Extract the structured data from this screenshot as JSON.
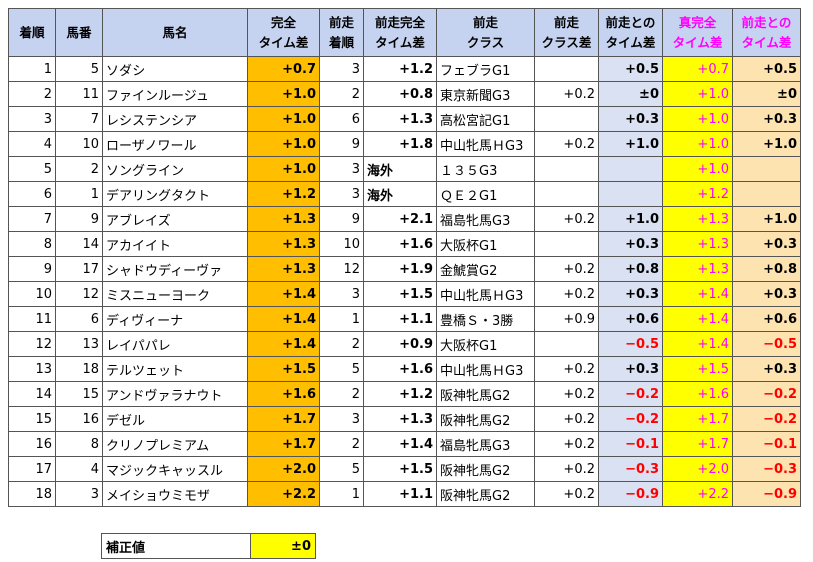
{
  "headers": [
    "着順",
    "馬番",
    "馬名",
    "完全\nタイム差",
    "前走\n着順",
    "前走完全\nタイム差",
    "前走\nクラス",
    "前走\nクラス差",
    "前走との\nタイム差",
    "真完全\nタイム差",
    "前走との\nタイム差"
  ],
  "rows": [
    [
      "1",
      "5",
      "ソダシ",
      "+0.7",
      "3",
      "+1.2",
      "フェブラG1",
      "",
      "+0.5",
      "+0.7",
      "+0.5"
    ],
    [
      "2",
      "11",
      "ファインルージュ",
      "+1.0",
      "2",
      "+0.8",
      "東京新聞G3",
      "+0.2",
      "±0",
      "+1.0",
      "±0"
    ],
    [
      "3",
      "7",
      "レシステンシア",
      "+1.0",
      "6",
      "+1.3",
      "高松宮記G1",
      "",
      "+0.3",
      "+1.0",
      "+0.3"
    ],
    [
      "4",
      "10",
      "ローザノワール",
      "+1.0",
      "9",
      "+1.8",
      "中山牝馬ＨG3",
      "+0.2",
      "+1.0",
      "+1.0",
      "+1.0"
    ],
    [
      "5",
      "2",
      "ソングライン",
      "+1.0",
      "3",
      "海外",
      "１３５G3",
      "",
      "",
      "+1.0",
      ""
    ],
    [
      "6",
      "1",
      "デアリングタクト",
      "+1.2",
      "3",
      "海外",
      "ＱＥ２G1",
      "",
      "",
      "+1.2",
      ""
    ],
    [
      "7",
      "9",
      "アブレイズ",
      "+1.3",
      "9",
      "+2.1",
      "福島牝馬G3",
      "+0.2",
      "+1.0",
      "+1.3",
      "+1.0"
    ],
    [
      "8",
      "14",
      "アカイイト",
      "+1.3",
      "10",
      "+1.6",
      "大阪杯G1",
      "",
      "+0.3",
      "+1.3",
      "+0.3"
    ],
    [
      "9",
      "17",
      "シャドウディーヴァ",
      "+1.3",
      "12",
      "+1.9",
      "金鯱賞G2",
      "+0.2",
      "+0.8",
      "+1.3",
      "+0.8"
    ],
    [
      "10",
      "12",
      "ミスニューヨーク",
      "+1.4",
      "3",
      "+1.5",
      "中山牝馬ＨG3",
      "+0.2",
      "+0.3",
      "+1.4",
      "+0.3"
    ],
    [
      "11",
      "6",
      "ディヴィーナ",
      "+1.4",
      "1",
      "+1.1",
      "豊橋Ｓ・3勝",
      "+0.9",
      "+0.6",
      "+1.4",
      "+0.6"
    ],
    [
      "12",
      "13",
      "レイパパレ",
      "+1.4",
      "2",
      "+0.9",
      "大阪杯G1",
      "",
      "−0.5",
      "+1.4",
      "−0.5"
    ],
    [
      "13",
      "18",
      "テルツェット",
      "+1.5",
      "5",
      "+1.6",
      "中山牝馬ＨG3",
      "+0.2",
      "+0.3",
      "+1.5",
      "+0.3"
    ],
    [
      "14",
      "15",
      "アンドヴァラナウト",
      "+1.6",
      "2",
      "+1.2",
      "阪神牝馬G2",
      "+0.2",
      "−0.2",
      "+1.6",
      "−0.2"
    ],
    [
      "15",
      "16",
      "デゼル",
      "+1.7",
      "3",
      "+1.3",
      "阪神牝馬G2",
      "+0.2",
      "−0.2",
      "+1.7",
      "−0.2"
    ],
    [
      "16",
      "8",
      "クリノプレミアム",
      "+1.7",
      "2",
      "+1.4",
      "福島牝馬G3",
      "+0.2",
      "−0.1",
      "+1.7",
      "−0.1"
    ],
    [
      "17",
      "4",
      "マジックキャッスル",
      "+2.0",
      "5",
      "+1.5",
      "阪神牝馬G2",
      "+0.2",
      "−0.3",
      "+2.0",
      "−0.3"
    ],
    [
      "18",
      "3",
      "メイショウミモザ",
      "+2.2",
      "1",
      "+1.1",
      "阪神牝馬G2",
      "+0.2",
      "−0.9",
      "+2.2",
      "−0.9"
    ]
  ],
  "footer": {
    "label": "補正値",
    "value": "±0"
  }
}
